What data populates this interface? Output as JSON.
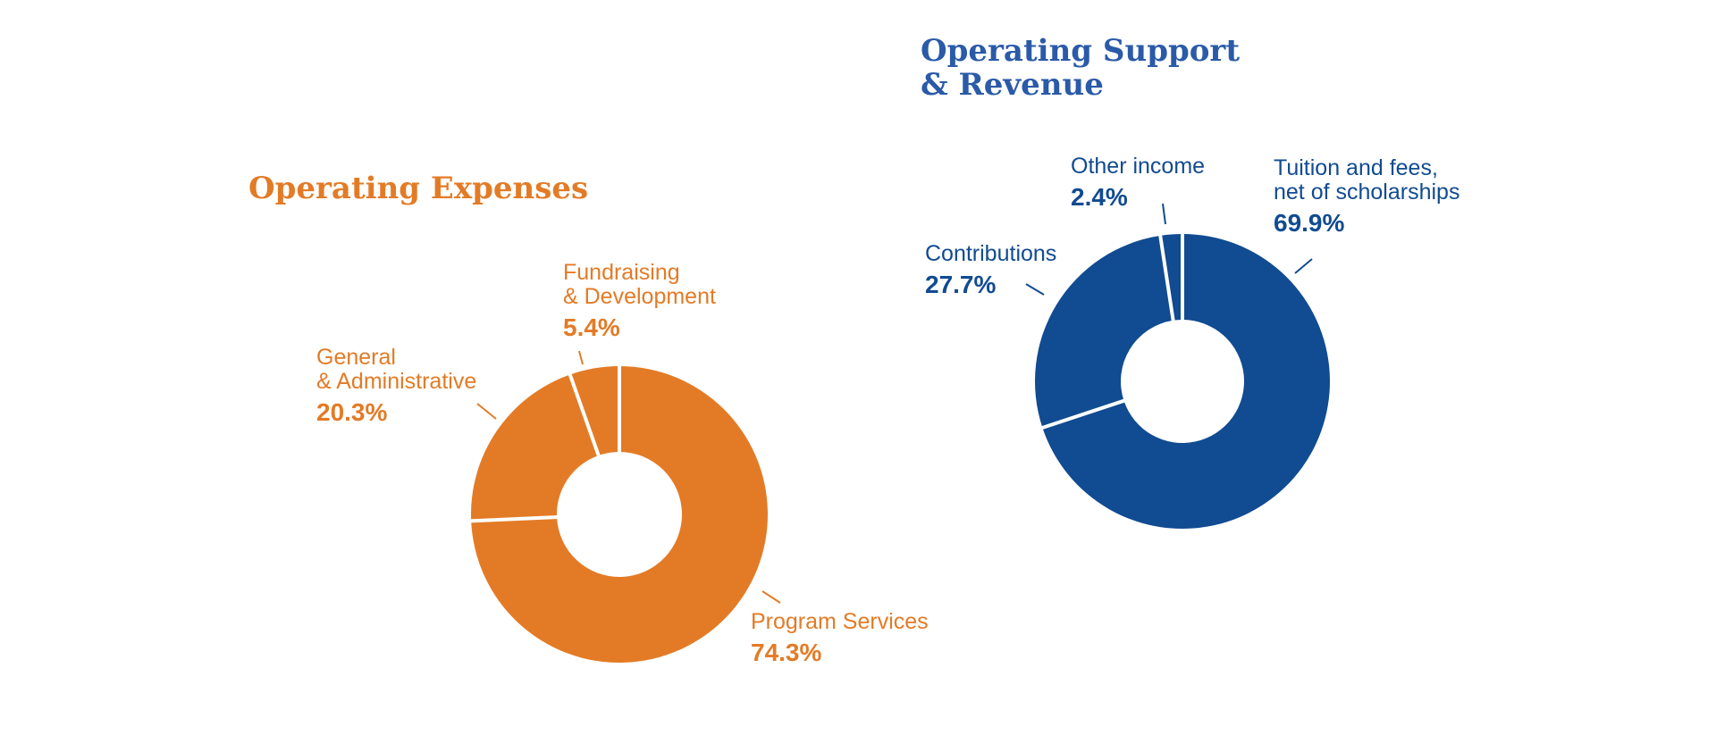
{
  "chart_data": [
    {
      "type": "pie",
      "title": "Operating Expenses",
      "color": "#e37b26",
      "slices": [
        {
          "label_lines": [
            "Program Services"
          ],
          "value": 74.3,
          "value_label": "74.3%"
        },
        {
          "label_lines": [
            "General",
            "& Administrative"
          ],
          "value": 20.3,
          "value_label": "20.3%"
        },
        {
          "label_lines": [
            "Fundraising",
            "& Development"
          ],
          "value": 5.4,
          "value_label": "5.4%"
        }
      ]
    },
    {
      "type": "pie",
      "title_lines": [
        "Operating Support",
        "& Revenue"
      ],
      "color": "#114b91",
      "slices": [
        {
          "label_lines": [
            "Tuition and fees,",
            "net of scholarships"
          ],
          "value": 69.9,
          "value_label": "69.9%"
        },
        {
          "label_lines": [
            "Contributions"
          ],
          "value": 27.7,
          "value_label": "27.7%"
        },
        {
          "label_lines": [
            "Other income"
          ],
          "value": 2.4,
          "value_label": "2.4%"
        }
      ]
    }
  ]
}
